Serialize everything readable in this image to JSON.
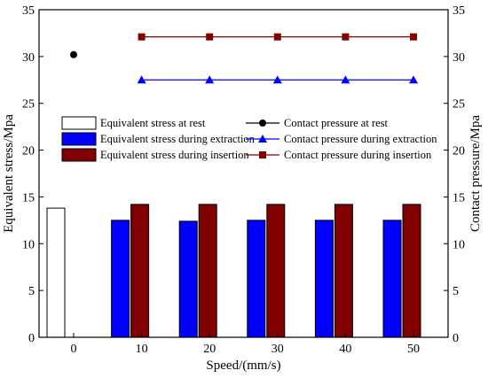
{
  "chart_data": {
    "type": "bar",
    "xlabel": "Speed/(mm/s)",
    "ylabel_left": "Equivalent stress/Mpa",
    "ylabel_right": "Contact pressure/Mpa",
    "categories": [
      "0",
      "10",
      "20",
      "30",
      "40",
      "50"
    ],
    "ylim": [
      0,
      35
    ],
    "y_ticks": [
      0,
      5,
      10,
      15,
      20,
      25,
      30,
      35
    ],
    "x_ticks": [
      "0",
      "10",
      "20",
      "30",
      "40",
      "50"
    ],
    "bar_series": [
      {
        "name": "Equivalent stress at rest",
        "color": "#ffffff",
        "stroke": "#000000",
        "values": [
          13.8,
          null,
          null,
          null,
          null,
          null
        ]
      },
      {
        "name": "Equivalent stress during extraction",
        "color": "#0000ff",
        "stroke": "#000000",
        "values": [
          null,
          12.5,
          12.4,
          12.5,
          12.5,
          12.5
        ]
      },
      {
        "name": "Equivalent stress during insertion",
        "color": "#800000",
        "stroke": "#000000",
        "values": [
          null,
          14.2,
          14.2,
          14.2,
          14.2,
          14.2
        ]
      }
    ],
    "line_series": [
      {
        "name": "Contact pressure at rest",
        "color": "#000000",
        "marker": "circle",
        "x": [
          "0"
        ],
        "values": [
          30.2
        ]
      },
      {
        "name": "Contact pressure during extraction",
        "color": "#0000ff",
        "marker": "triangle",
        "x": [
          "10",
          "20",
          "30",
          "40",
          "50"
        ],
        "values": [
          27.5,
          27.5,
          27.5,
          27.5,
          27.5
        ]
      },
      {
        "name": "Contact pressure during insertion",
        "color": "#800000",
        "marker": "square",
        "x": [
          "10",
          "20",
          "30",
          "40",
          "50"
        ],
        "values": [
          32.1,
          32.1,
          32.1,
          32.1,
          32.1
        ]
      }
    ],
    "legend_position": "center-left, two columns",
    "grid": false
  }
}
